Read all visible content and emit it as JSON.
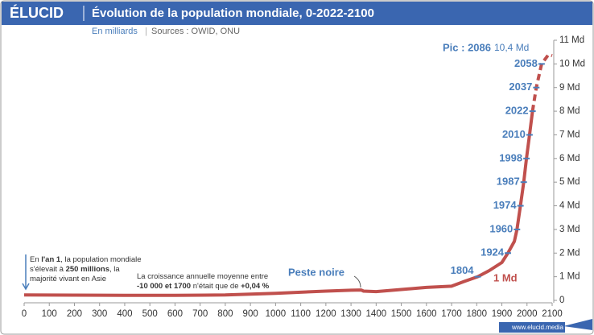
{
  "chart_data": {
    "type": "line",
    "logo": "ÉLUCID",
    "title": "Évolution de la population mondiale, 0-2022-2100",
    "subtitle": "En milliards",
    "source": "Sources : OWID, ONU",
    "footer": "www.elucid.media",
    "series": [
      {
        "color": "#c0504d",
        "style": "solid",
        "x": [
          0,
          200,
          400,
          600,
          800,
          1000,
          1200,
          1300,
          1340,
          1350,
          1400,
          1500,
          1600,
          1700,
          1750,
          1804,
          1850,
          1900,
          1924,
          1950,
          1960,
          1974,
          1987,
          1998,
          2010,
          2022
        ],
        "values": [
          0.23,
          0.22,
          0.21,
          0.21,
          0.23,
          0.3,
          0.39,
          0.43,
          0.44,
          0.39,
          0.37,
          0.46,
          0.55,
          0.6,
          0.8,
          1,
          1.26,
          1.6,
          2,
          2.5,
          3,
          4,
          5,
          6,
          7,
          8
        ]
      },
      {
        "color": "#c0504d",
        "style": "dashed",
        "x": [
          2022,
          2037,
          2058,
          2086,
          2100
        ],
        "values": [
          8,
          9,
          10,
          10.4,
          10.35
        ]
      }
    ],
    "milestones": [
      {
        "year": 1804,
        "value": 1
      },
      {
        "year": 1924,
        "value": 2
      },
      {
        "year": 1960,
        "value": 3
      },
      {
        "year": 1974,
        "value": 4
      },
      {
        "year": 1987,
        "value": 5
      },
      {
        "year": 1998,
        "value": 6
      },
      {
        "year": 2010,
        "value": 7
      },
      {
        "year": 2022,
        "value": 8
      },
      {
        "year": 2037,
        "value": 9
      },
      {
        "year": 2058,
        "value": 10
      }
    ],
    "milestone_color": "#4a7ebb",
    "peak_label": "Pic : 2086",
    "peak_value_label": "10,4 Md",
    "first_billion_label": "1 Md",
    "plague_label": "Peste noire",
    "note_year_one": [
      [
        {
          "t": "En "
        },
        {
          "t": "l'an 1",
          "b": true
        },
        {
          "t": ", la population mondiale"
        }
      ],
      [
        {
          "t": "s'élevait à "
        },
        {
          "t": "250 millions",
          "b": true
        },
        {
          "t": ", la"
        }
      ],
      [
        {
          "t": "majorité vivant en Asie"
        }
      ]
    ],
    "note_growth": [
      [
        {
          "t": "La croissance annuelle moyenne entre"
        }
      ],
      [
        {
          "t": "-10 000 et 1700",
          "b": true
        },
        {
          "t": " n'était que de "
        },
        {
          "t": "+0,04 %",
          "b": true
        }
      ]
    ],
    "xlim": [
      0,
      2100
    ],
    "xticks": [
      0,
      100,
      200,
      300,
      400,
      500,
      600,
      700,
      800,
      900,
      1000,
      1100,
      1200,
      1300,
      1400,
      1500,
      1600,
      1700,
      1800,
      1900,
      2000,
      2100
    ],
    "ylim": [
      0,
      11
    ],
    "yticks": [
      0,
      {
        "value": 1,
        "label": "1 Md"
      },
      {
        "value": 2,
        "label": "2 Md"
      },
      {
        "value": 3,
        "label": "3 Md"
      },
      {
        "value": 4,
        "label": "4 Md"
      },
      {
        "value": 5,
        "label": "5 Md"
      },
      {
        "value": 6,
        "label": "6 Md"
      },
      {
        "value": 7,
        "label": "7 Md"
      },
      {
        "value": 8,
        "label": "8 Md"
      },
      {
        "value": 9,
        "label": "9 Md"
      },
      {
        "value": 10,
        "label": "10 Md"
      },
      {
        "value": 11,
        "label": "11 Md"
      }
    ]
  }
}
